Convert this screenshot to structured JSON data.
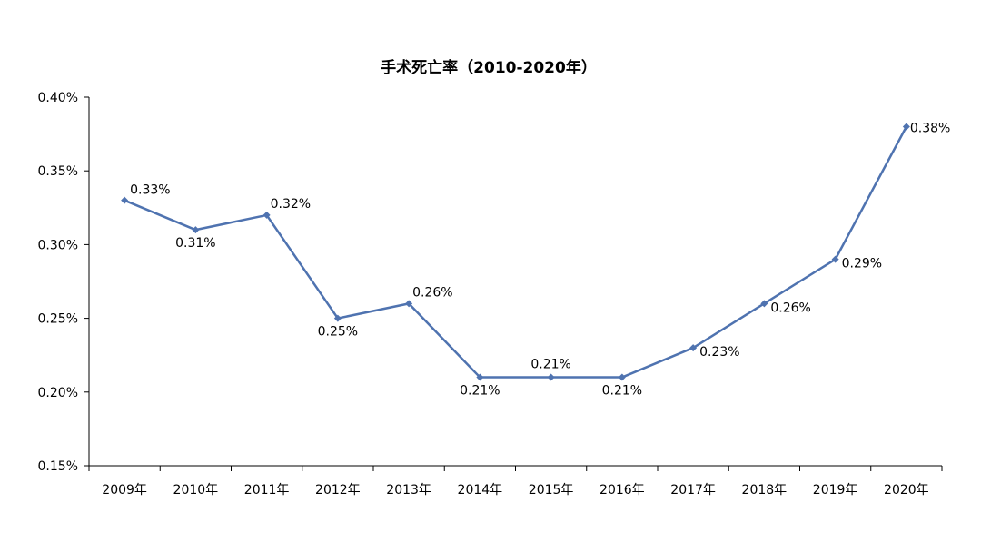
{
  "chart_data": {
    "type": "line",
    "title": "手术死亡率（2010-2020年）",
    "xlabel": "",
    "ylabel": "",
    "categories": [
      "2009年",
      "2010年",
      "2011年",
      "2012年",
      "2013年",
      "2014年",
      "2015年",
      "2016年",
      "2017年",
      "2018年",
      "2019年",
      "2020年"
    ],
    "series": [
      {
        "values": [
          0.33,
          0.31,
          0.32,
          0.25,
          0.26,
          0.21,
          0.21,
          0.21,
          0.23,
          0.26,
          0.29,
          0.38
        ],
        "labels": [
          "0.33%",
          "0.31%",
          "0.32%",
          "0.25%",
          "0.26%",
          "0.21%",
          "0.21%",
          "0.21%",
          "0.23%",
          "0.26%",
          "0.29%",
          "0.38%"
        ],
        "color": "#4f73b0"
      }
    ],
    "ylim": [
      0.15,
      0.4
    ],
    "yticks": [
      {
        "value": 0.4,
        "label": "0.40%"
      },
      {
        "value": 0.35,
        "label": "0.35%"
      },
      {
        "value": 0.3,
        "label": "0.30%"
      },
      {
        "value": 0.25,
        "label": "0.25%"
      },
      {
        "value": 0.2,
        "label": "0.20%"
      },
      {
        "value": 0.15,
        "label": "0.15%"
      }
    ],
    "grid": false,
    "legend": "none"
  }
}
